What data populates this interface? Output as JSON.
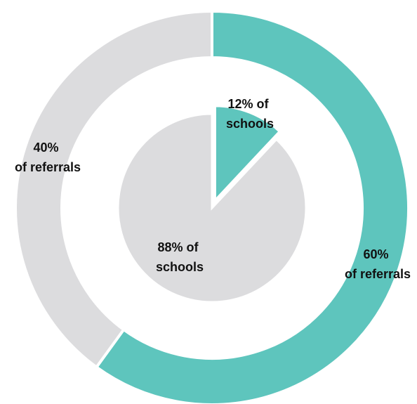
{
  "chart_data": [
    {
      "type": "pie",
      "ring": "outer",
      "categories": [
        "of referrals",
        "of referrals"
      ],
      "values": [
        60,
        40
      ],
      "labels": [
        {
          "line1": "60%",
          "line2": "of referrals"
        },
        {
          "line1": "40%",
          "line2": "of referrals"
        }
      ],
      "colors": [
        "#5ec5bd",
        "#dcdcde"
      ]
    },
    {
      "type": "pie",
      "ring": "inner",
      "categories": [
        "of schools",
        "of schools"
      ],
      "values": [
        12,
        88
      ],
      "labels": [
        {
          "line1": "12% of",
          "line2": "schools"
        },
        {
          "line1": "88% of",
          "line2": "schools"
        }
      ],
      "colors": [
        "#5ec5bd",
        "#dcdcde"
      ]
    }
  ]
}
